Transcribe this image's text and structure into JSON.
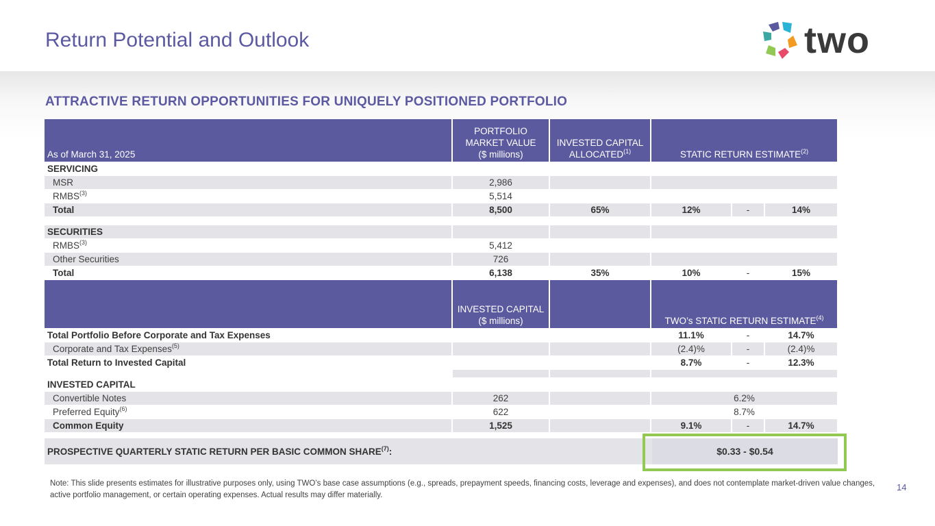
{
  "header": {
    "title": "Return Potential and Outlook",
    "logo_text": "two",
    "subtitle": "ATTRACTIVE RETURN OPPORTUNITIES FOR UNIQUELY POSITIONED PORTFOLIO"
  },
  "table1_header": {
    "as_of": "As of March 31, 2025",
    "col_market_value": [
      "PORTFOLIO",
      "MARKET VALUE",
      "($ millions)"
    ],
    "col_invested": [
      "INVESTED CAPITAL",
      "ALLOCATED"
    ],
    "col_invested_sup": "(1)",
    "col_static": "STATIC RETURN ESTIMATE",
    "col_static_sup": "(2)"
  },
  "servicing": {
    "label": "SERVICING",
    "msr": {
      "label": "MSR",
      "value": "2,986"
    },
    "rmbs": {
      "label": "RMBS",
      "sup": "(3)",
      "value": "5,514"
    },
    "total": {
      "label": "Total",
      "value": "8,500",
      "allocated": "65%",
      "low": "12%",
      "dash": "-",
      "high": "14%"
    }
  },
  "securities": {
    "label": "SECURITIES",
    "rmbs": {
      "label": "RMBS",
      "sup": "(3)",
      "value": "5,412"
    },
    "other": {
      "label": "Other Securities",
      "value": "726"
    },
    "total": {
      "label": "Total",
      "value": "6,138",
      "allocated": "35%",
      "low": "10%",
      "dash": "-",
      "high": "15%"
    }
  },
  "table2_header": {
    "col_invested": [
      "INVESTED CAPITAL",
      "($ millions)"
    ],
    "col_static": "TWO’s STATIC RETURN ESTIMATE",
    "col_static_sup": "(4)"
  },
  "returns": {
    "before": {
      "label": "Total Portfolio Before Corporate and Tax Expenses",
      "low": "11.1%",
      "dash": "-",
      "high": "14.7%"
    },
    "corporate": {
      "label": "Corporate and Tax Expenses",
      "sup": "(5)",
      "low": "(2.4)%",
      "dash": "-",
      "high": "(2.4)%"
    },
    "total": {
      "label": "Total Return to Invested Capital",
      "low": "8.7%",
      "dash": "-",
      "high": "12.3%"
    }
  },
  "invested_capital": {
    "label": "INVESTED CAPITAL",
    "convertible": {
      "label": "Convertible Notes",
      "value": "262",
      "rate": "6.2%"
    },
    "preferred": {
      "label": "Preferred Equity",
      "sup": "(6)",
      "value": "622",
      "rate": "8.7%"
    },
    "common": {
      "label": "Common Equity",
      "value": "1,525",
      "low": "9.1%",
      "dash": "-",
      "high": "14.7%"
    }
  },
  "prospective": {
    "label": "PROSPECTIVE QUARTERLY STATIC RETURN PER BASIC COMMON SHARE",
    "sup": "(7)",
    "colon": ":",
    "value": "$0.33 - $0.54"
  },
  "footer": {
    "note": "Note: This slide presents estimates for illustrative purposes only, using TWO’s base case assumptions (e.g., spreads, prepayment speeds, financing costs, leverage and expenses), and does not contemplate market-driven value changes, active portfolio management, or certain operating expenses. Actual results may differ materially.",
    "page_number": "14"
  },
  "colors": {
    "accent": "#5B59A1",
    "header_fill": "#5C5A9E",
    "highlight": "#92C955",
    "row_shade": "#e3e3e8"
  }
}
